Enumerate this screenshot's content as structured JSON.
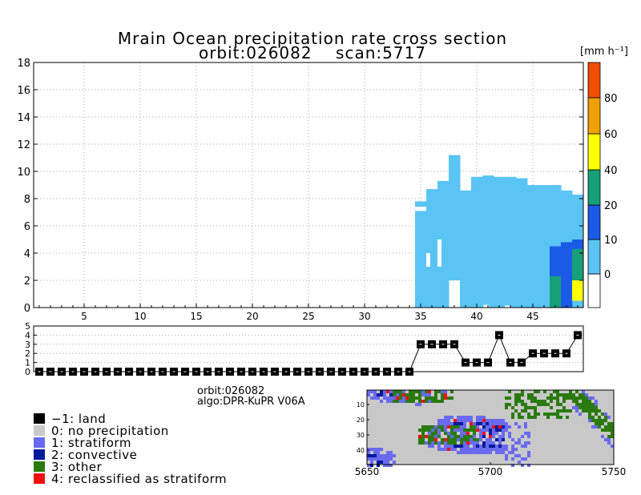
{
  "chart_data": [
    {
      "type": "heatmap",
      "title": "Mrain Ocean precipitation rate cross section",
      "subtitle": "orbit:026082    scan:5717",
      "xlabel": "",
      "ylabel": "",
      "xlim": [
        1,
        49
      ],
      "ylim": [
        0,
        18
      ],
      "xticks": [
        5,
        10,
        15,
        20,
        25,
        30,
        35,
        40,
        45
      ],
      "yticks": [
        0,
        2,
        4,
        6,
        8,
        10,
        12,
        14,
        16,
        18
      ],
      "grid": true,
      "colorbar": {
        "unit": "[mm h⁻¹]",
        "labels": [
          "0",
          "10",
          "20",
          "40",
          "60",
          "80"
        ],
        "colors": [
          "#ffffff",
          "#5ac4f5",
          "#1a5ae6",
          "#16a078",
          "#ffff00",
          "#f0a000",
          "#f04e00"
        ]
      },
      "columns": [
        {
          "x": 35,
          "top": 7.8,
          "mid_bottom": 7.1,
          "mid_top": 7.4,
          "bottom": 0.0,
          "notch_bottom": 3.5,
          "notch_top": 3.5
        },
        {
          "x": 36,
          "top": 8.7,
          "bottom": 0.0,
          "notch_bottom": 3.0,
          "notch_top": 4.0
        },
        {
          "x": 37,
          "top": 9.3,
          "bottom": 0.0,
          "notch_bottom": 3.0,
          "notch_top": 5.0
        },
        {
          "x": 38,
          "top": 11.2,
          "bottom": 2.0
        },
        {
          "x": 39,
          "top": 8.6,
          "bottom": 0.0
        },
        {
          "x": 40,
          "top": 9.6,
          "bottom": 0.0
        },
        {
          "x": 41,
          "top": 9.7,
          "bottom": 0.0
        },
        {
          "x": 42,
          "top": 9.6,
          "bottom": 0.0
        },
        {
          "x": 43,
          "top": 9.6,
          "bottom": 0.0
        },
        {
          "x": 44,
          "top": 9.5,
          "bottom": 0.0
        },
        {
          "x": 45,
          "top": 9.0,
          "bottom": 0.0
        },
        {
          "x": 46,
          "top": 9.0,
          "bottom": 0.0
        },
        {
          "x": 47,
          "top": 9.0,
          "bottom": 0.0
        },
        {
          "x": 48,
          "top": 8.6,
          "bottom": 0.0
        },
        {
          "x": 49,
          "top": 8.3,
          "bottom": 0.0
        }
      ],
      "color_patches": [
        {
          "x": 47,
          "y0": 0.0,
          "y1": 2.3,
          "class": "20-40"
        },
        {
          "x": 47,
          "y0": 2.3,
          "y1": 4.5,
          "class": "10-20"
        },
        {
          "x": 48,
          "y0": 0.0,
          "y1": 4.8,
          "class": "10-20"
        },
        {
          "x": 49,
          "y0": 2.0,
          "y1": 4.3,
          "class": "20-40"
        },
        {
          "x": 49,
          "y0": 0.5,
          "y1": 2.0,
          "class": "40-60"
        },
        {
          "x": 49,
          "y0": 4.3,
          "y1": 5.0,
          "class": "10-20"
        }
      ]
    },
    {
      "type": "line",
      "ylim": [
        0,
        5
      ],
      "yticks": [
        0,
        1,
        2,
        3,
        4,
        5
      ],
      "x": [
        1,
        2,
        3,
        4,
        5,
        6,
        7,
        8,
        9,
        10,
        11,
        12,
        13,
        14,
        15,
        16,
        17,
        18,
        19,
        20,
        21,
        22,
        23,
        24,
        25,
        26,
        27,
        28,
        29,
        30,
        31,
        32,
        33,
        34,
        35,
        36,
        37,
        38,
        39,
        40,
        41,
        42,
        43,
        44,
        45,
        46,
        47,
        48,
        49
      ],
      "values": [
        0,
        0,
        0,
        0,
        0,
        0,
        0,
        0,
        0,
        0,
        0,
        0,
        0,
        0,
        0,
        0,
        0,
        0,
        0,
        0,
        0,
        0,
        0,
        0,
        0,
        0,
        0,
        0,
        0,
        0,
        0,
        0,
        0,
        0,
        3,
        3,
        3,
        3,
        1,
        1,
        1,
        4,
        1,
        1,
        2,
        2,
        2,
        2,
        4
      ]
    },
    {
      "type": "heatmap",
      "xticks": [
        "5650",
        "5700",
        "5750"
      ],
      "yticks": [
        "10",
        "20",
        "30",
        "40"
      ]
    }
  ],
  "info": {
    "orbit": "orbit:026082",
    "algo": "algo:DPR-KuPR V06A"
  },
  "legend": [
    {
      "label": "−1: land",
      "color": "#000000"
    },
    {
      "label": "0: no precipitation",
      "color": "#c8c8c8"
    },
    {
      "label": "1: stratiform",
      "color": "#6a6af0"
    },
    {
      "label": "2: convective",
      "color": "#001a9c"
    },
    {
      "label": "3: other",
      "color": "#2a7a10"
    },
    {
      "label": "4: reclassified as stratiform",
      "color": "#f01010"
    }
  ]
}
